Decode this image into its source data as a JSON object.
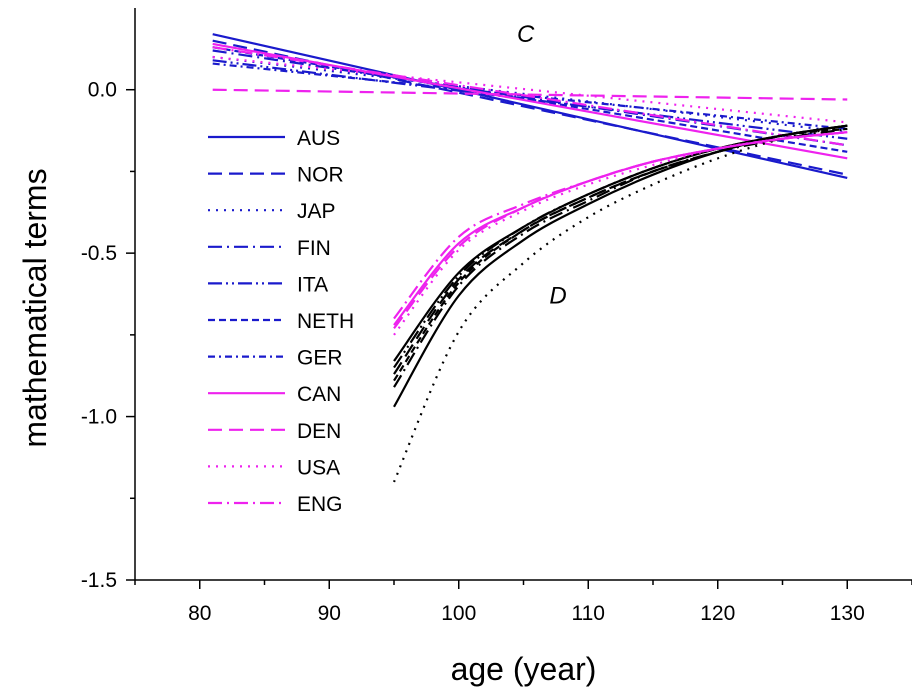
{
  "chart_data": {
    "type": "line",
    "title": "",
    "xlabel": "age (year)",
    "ylabel": "mathematical terms",
    "xlim": [
      75,
      135
    ],
    "ylim": [
      -1.5,
      0.25
    ],
    "x_ticks": [
      80,
      90,
      100,
      110,
      120,
      130
    ],
    "x_tick_labels": [
      "80",
      "90",
      "100",
      "110",
      "120",
      "130"
    ],
    "y_ticks": [
      -1.5,
      -1.0,
      -0.5,
      0.0
    ],
    "y_tick_labels": [
      "-1.5",
      "-1.0",
      "-0.5",
      "0.0"
    ],
    "grid": false,
    "legend_position": "left",
    "annotations": [
      {
        "text": "C",
        "x": 104.5,
        "y": 0.17
      },
      {
        "text": "D",
        "x": 107,
        "y": -0.63
      }
    ],
    "colors": {
      "blue": "#1a1acc",
      "magenta": "#ee22ee",
      "black": "#000000"
    },
    "series_C": [
      {
        "name": "AUS",
        "color": "blue",
        "dash": "solid",
        "x": [
          81,
          130
        ],
        "y": [
          0.17,
          -0.27
        ]
      },
      {
        "name": "NOR",
        "color": "blue",
        "dash": "dash",
        "x": [
          81,
          130
        ],
        "y": [
          0.15,
          -0.26
        ]
      },
      {
        "name": "JAP",
        "color": "blue",
        "dash": "dot",
        "x": [
          81,
          130
        ],
        "y": [
          0.1,
          -0.13
        ]
      },
      {
        "name": "FIN",
        "color": "blue",
        "dash": "dashdot",
        "x": [
          81,
          130
        ],
        "y": [
          0.12,
          -0.17
        ]
      },
      {
        "name": "ITA",
        "color": "blue",
        "dash": "dashdotdot",
        "x": [
          81,
          130
        ],
        "y": [
          0.09,
          -0.15
        ]
      },
      {
        "name": "NETH",
        "color": "blue",
        "dash": "shortdash",
        "x": [
          81,
          130
        ],
        "y": [
          0.13,
          -0.19
        ]
      },
      {
        "name": "GER",
        "color": "blue",
        "dash": "shortdashdot",
        "x": [
          81,
          130
        ],
        "y": [
          0.08,
          -0.12
        ]
      },
      {
        "name": "CAN",
        "color": "magenta",
        "dash": "solid",
        "x": [
          81,
          130
        ],
        "y": [
          0.14,
          -0.21
        ]
      },
      {
        "name": "DEN",
        "color": "magenta",
        "dash": "dash",
        "x": [
          81,
          130
        ],
        "y": [
          0.0,
          -0.03
        ]
      },
      {
        "name": "USA",
        "color": "magenta",
        "dash": "dot",
        "x": [
          81,
          130
        ],
        "y": [
          0.1,
          -0.1
        ]
      },
      {
        "name": "ENG",
        "color": "magenta",
        "dash": "dashdot",
        "x": [
          81,
          130
        ],
        "y": [
          0.13,
          -0.17
        ]
      }
    ],
    "series_D": [
      {
        "color": "black",
        "dash": "solid",
        "x": [
          95,
          100,
          105,
          110,
          115,
          120,
          125,
          130
        ],
        "y": [
          -0.83,
          -0.56,
          -0.42,
          -0.32,
          -0.24,
          -0.18,
          -0.14,
          -0.11
        ]
      },
      {
        "color": "black",
        "dash": "solid",
        "x": [
          95,
          100,
          105,
          110,
          115,
          120,
          125,
          130
        ],
        "y": [
          -0.97,
          -0.63,
          -0.46,
          -0.35,
          -0.26,
          -0.19,
          -0.14,
          -0.11
        ]
      },
      {
        "color": "black",
        "dash": "dash",
        "x": [
          95,
          100,
          105,
          110,
          115,
          120,
          125,
          130
        ],
        "y": [
          -0.87,
          -0.58,
          -0.43,
          -0.33,
          -0.25,
          -0.19,
          -0.14,
          -0.11
        ]
      },
      {
        "color": "black",
        "dash": "dashdot",
        "x": [
          95,
          100,
          105,
          110,
          115,
          120,
          125,
          130
        ],
        "y": [
          -0.91,
          -0.6,
          -0.44,
          -0.34,
          -0.25,
          -0.19,
          -0.15,
          -0.12
        ]
      },
      {
        "color": "black",
        "dash": "dot",
        "x": [
          95,
          100,
          105,
          110,
          115,
          120,
          125,
          130
        ],
        "y": [
          -1.2,
          -0.74,
          -0.53,
          -0.39,
          -0.29,
          -0.21,
          -0.15,
          -0.11
        ]
      },
      {
        "color": "black",
        "dash": "dashdotdot",
        "x": [
          95,
          100,
          105,
          110,
          115,
          120,
          125,
          130
        ],
        "y": [
          -0.85,
          -0.57,
          -0.42,
          -0.32,
          -0.24,
          -0.18,
          -0.14,
          -0.11
        ]
      },
      {
        "color": "black",
        "dash": "shortdash",
        "x": [
          95,
          100,
          105,
          110,
          115,
          120,
          125,
          130
        ],
        "y": [
          -0.89,
          -0.59,
          -0.43,
          -0.33,
          -0.25,
          -0.19,
          -0.14,
          -0.12
        ]
      },
      {
        "color": "magenta",
        "dash": "dashdot",
        "x": [
          95,
          100,
          105,
          110,
          115,
          120,
          125,
          130
        ],
        "y": [
          -0.7,
          -0.45,
          -0.35,
          -0.28,
          -0.22,
          -0.18,
          -0.15,
          -0.13
        ]
      },
      {
        "color": "magenta",
        "dash": "solid",
        "x": [
          95,
          100,
          105,
          110,
          115,
          120,
          125,
          130
        ],
        "y": [
          -0.72,
          -0.47,
          -0.36,
          -0.28,
          -0.22,
          -0.18,
          -0.15,
          -0.13
        ]
      },
      {
        "color": "magenta",
        "dash": "dot",
        "x": [
          95,
          100,
          105,
          110,
          115,
          120,
          125,
          130
        ],
        "y": [
          -0.75,
          -0.49,
          -0.37,
          -0.29,
          -0.23,
          -0.18,
          -0.15,
          -0.13
        ]
      },
      {
        "color": "magenta",
        "dash": "dash",
        "x": [
          95,
          100,
          105,
          110,
          115,
          120,
          125,
          130
        ],
        "y": [
          -0.73,
          -0.48,
          -0.36,
          -0.28,
          -0.22,
          -0.18,
          -0.15,
          -0.13
        ]
      }
    ]
  }
}
